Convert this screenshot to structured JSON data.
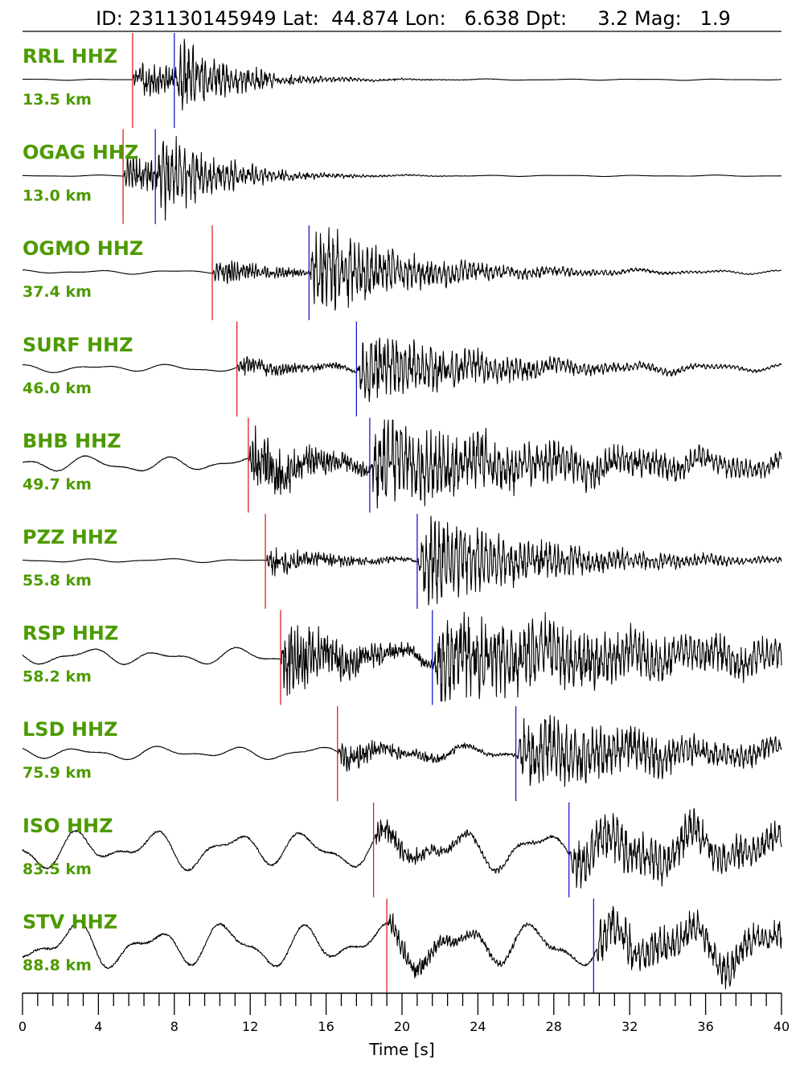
{
  "chart_data": {
    "type": "line",
    "title": "ID: 231130145949 Lat:  44.874 Lon:   6.638 Dpt:     3.2 Mag:   1.9",
    "xlabel": "Time [s]",
    "ylabel": "",
    "xlim": [
      0,
      40
    ],
    "x_ticks": [
      "0",
      "4",
      "8",
      "12",
      "16",
      "20",
      "24",
      "28",
      "32",
      "36",
      "40"
    ],
    "grid": false,
    "p_color": "#e02020",
    "s_color": "#1a1ad0",
    "label_color": "#4d9a00",
    "series": [
      {
        "name": "RRL HHZ",
        "distance": "13.5 km",
        "p_time": 5.8,
        "s_time": 8.0,
        "noise_amp": 0.02,
        "p_amp": 0.45,
        "s_amp": 0.9,
        "coda_decay": 0.35
      },
      {
        "name": "OGAG HHZ",
        "distance": "13.0 km",
        "p_time": 5.3,
        "s_time": 7.0,
        "noise_amp": 0.02,
        "p_amp": 0.5,
        "s_amp": 1.0,
        "coda_decay": 0.35
      },
      {
        "name": "OGMO HHZ",
        "distance": "37.4 km",
        "p_time": 10.0,
        "s_time": 15.1,
        "noise_amp": 0.06,
        "p_amp": 0.3,
        "s_amp": 1.0,
        "coda_decay": 0.18
      },
      {
        "name": "SURF HHZ",
        "distance": "46.0 km",
        "p_time": 11.3,
        "s_time": 17.6,
        "noise_amp": 0.12,
        "p_amp": 0.25,
        "s_amp": 0.85,
        "coda_decay": 0.15
      },
      {
        "name": "BHB HHZ",
        "distance": "49.7 km",
        "p_time": 11.9,
        "s_time": 18.3,
        "noise_amp": 0.25,
        "p_amp": 0.8,
        "s_amp": 0.95,
        "coda_decay": 0.08
      },
      {
        "name": "PZZ HHZ",
        "distance": "55.8 km",
        "p_time": 12.8,
        "s_time": 20.8,
        "noise_amp": 0.06,
        "p_amp": 0.35,
        "s_amp": 1.0,
        "coda_decay": 0.14
      },
      {
        "name": "RSP HHZ",
        "distance": "58.2 km",
        "p_time": 13.6,
        "s_time": 21.6,
        "noise_amp": 0.25,
        "p_amp": 0.9,
        "s_amp": 0.95,
        "coda_decay": 0.06
      },
      {
        "name": "LSD HHZ",
        "distance": "75.9 km",
        "p_time": 16.6,
        "s_time": 26.0,
        "noise_amp": 0.2,
        "p_amp": 0.35,
        "s_amp": 0.8,
        "coda_decay": 0.1
      },
      {
        "name": "ISO HHZ",
        "distance": "83.5 km",
        "p_time": 18.5,
        "s_time": 28.8,
        "noise_amp": 0.6,
        "p_amp": 0.3,
        "s_amp": 0.55,
        "coda_decay": 0.05
      },
      {
        "name": "STV HHZ",
        "distance": "88.8 km",
        "p_time": 19.2,
        "s_time": 30.1,
        "noise_amp": 0.7,
        "p_amp": 0.3,
        "s_amp": 0.5,
        "coda_decay": 0.05
      }
    ]
  }
}
